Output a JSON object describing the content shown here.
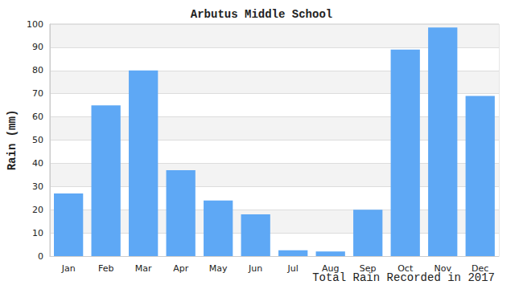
{
  "chart_data": {
    "type": "bar",
    "title": "Arbutus Middle School",
    "x_label": "Total Rain Recorded in 2017",
    "y_label": "Rain (mm)",
    "categories": [
      "Jan",
      "Feb",
      "Mar",
      "Apr",
      "May",
      "Jun",
      "Jul",
      "Aug",
      "Sep",
      "Oct",
      "Nov",
      "Dec"
    ],
    "values": [
      27,
      65,
      80,
      37,
      24,
      18,
      2.5,
      2,
      20,
      89,
      98.5,
      69
    ],
    "color": "#5ea8f5",
    "ylim": [
      0,
      100
    ],
    "yticks": [
      0,
      10,
      20,
      30,
      40,
      50,
      60,
      70,
      80,
      90,
      100
    ],
    "grid": true
  }
}
